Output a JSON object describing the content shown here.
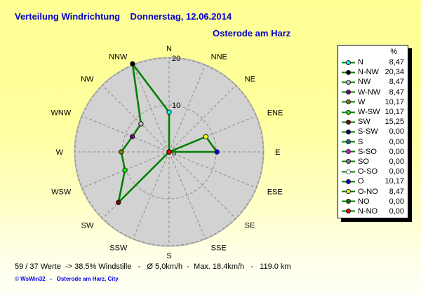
{
  "header": {
    "title": "Verteilung Windrichtung    Donnerstag, 12.06.2014",
    "subtitle": "Osterode am Harz",
    "title_color": "#0000CC"
  },
  "footer": {
    "stats": "59 / 37 Werte  -> 38.5% Windstille   -   Ø 5,0km/h  -  Max. 18,4km/h   -   119.0 km",
    "copyright": "© WsWin32   -   Osterode am Harz, City"
  },
  "legend": {
    "header_label": "%",
    "items": [
      {
        "label": "N",
        "value": "8,47",
        "color": "#00FFFF",
        "dir": "N"
      },
      {
        "label": "N-NW",
        "value": "20,34",
        "color": "#000000",
        "dir": "NNW"
      },
      {
        "label": "NW",
        "value": "8,47",
        "color": "#C0C0C0",
        "dir": "NW"
      },
      {
        "label": "W-NW",
        "value": "8,47",
        "color": "#800080",
        "dir": "WNW"
      },
      {
        "label": "W",
        "value": "10,17",
        "color": "#808000",
        "dir": "W"
      },
      {
        "label": "W-SW",
        "value": "10,17",
        "color": "#00FF00",
        "dir": "WSW"
      },
      {
        "label": "SW",
        "value": "15,25",
        "color": "#800000",
        "dir": "SW"
      },
      {
        "label": "S-SW",
        "value": "0,00",
        "color": "#000080",
        "dir": "SSW"
      },
      {
        "label": "S",
        "value": "0,00",
        "color": "#008080",
        "dir": "S"
      },
      {
        "label": "S-SO",
        "value": "0,00",
        "color": "#FF00FF",
        "dir": "SSE"
      },
      {
        "label": "SO",
        "value": "0,00",
        "color": "#808080",
        "dir": "SE"
      },
      {
        "label": "O-SO",
        "value": "0,00",
        "color": "#FFFFFF",
        "dir": "ESE"
      },
      {
        "label": "O",
        "value": "10,17",
        "color": "#0000FF",
        "dir": "E"
      },
      {
        "label": "O-NO",
        "value": "8,47",
        "color": "#FFFF00",
        "dir": "ENE"
      },
      {
        "label": "NO",
        "value": "0,00",
        "color": "#008000",
        "dir": "NE"
      },
      {
        "label": "N-NO",
        "value": "0,00",
        "color": "#FF0000",
        "dir": "NNE"
      }
    ]
  },
  "chart_data": {
    "type": "radar",
    "title": "Verteilung Windrichtung",
    "units": "%",
    "directions": [
      "N",
      "NNE",
      "NE",
      "ENE",
      "E",
      "ESE",
      "SE",
      "SSE",
      "S",
      "SSW",
      "SW",
      "WSW",
      "W",
      "WNW",
      "NW",
      "NNW"
    ],
    "values": [
      8.47,
      0,
      0,
      8.47,
      10.17,
      0,
      0,
      0,
      0,
      0,
      15.25,
      10.17,
      10.17,
      8.47,
      8.47,
      20.34
    ],
    "marker_colors": [
      "#00FFFF",
      "#FF0000",
      "#008000",
      "#FFFF00",
      "#0000FF",
      "#FFFFFF",
      "#808080",
      "#FF00FF",
      "#008080",
      "#000080",
      "#800000",
      "#00FF00",
      "#808000",
      "#800080",
      "#C0C0C0",
      "#000000"
    ],
    "ring_ticks": [
      0,
      10,
      20
    ],
    "r_axis_label_values": [
      "0",
      "10",
      "20"
    ],
    "line_color": "#008000",
    "disc_color": "#D2D2D2",
    "disc_edge_color": "#A8A8A8",
    "grid_color": "#8C8C8C",
    "grid_style": "dashed",
    "legend_position": "right"
  }
}
